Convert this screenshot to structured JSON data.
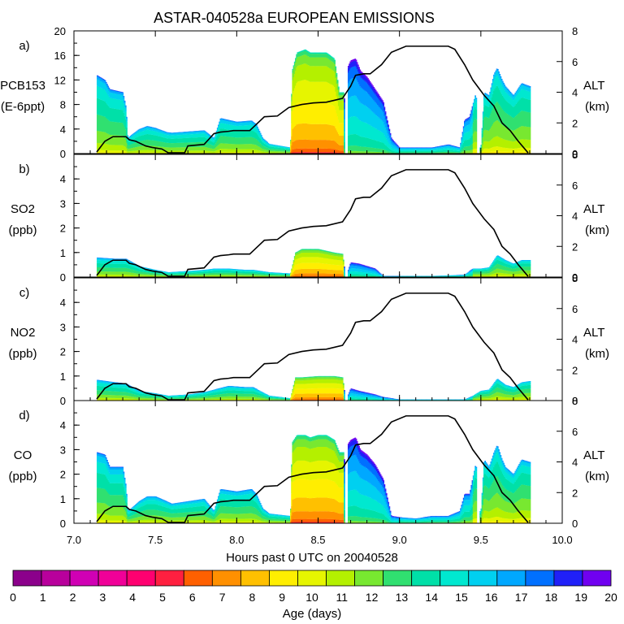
{
  "chart_data": {
    "type": "area",
    "title": "ASTAR-040528a EUROPEAN EMISSIONS",
    "xlabel": "Hours past 0 UTC on 20040528",
    "x_range": [
      7.0,
      10.0
    ],
    "x_ticks": [
      "7.0",
      "7.5",
      "8.0",
      "8.5",
      "9.0",
      "9.5",
      "10.0"
    ],
    "right_axis": {
      "label": "ALT",
      "units": "(km)",
      "range": [
        0,
        8
      ],
      "ticks": [
        "0",
        "2",
        "4",
        "6",
        "8"
      ]
    },
    "altitude_km": {
      "x": [
        7.14,
        7.19,
        7.24,
        7.32,
        7.34,
        7.38,
        7.44,
        7.48,
        7.54,
        7.58,
        7.68,
        7.7,
        7.8,
        7.86,
        7.9,
        7.95,
        7.98,
        8.08,
        8.1,
        8.17,
        8.25,
        8.32,
        8.4,
        8.47,
        8.55,
        8.65,
        8.7,
        8.73,
        8.78,
        8.82,
        8.89,
        8.95,
        9.04,
        9.1,
        9.2,
        9.3,
        9.34,
        9.4,
        9.45,
        9.52,
        9.58,
        9.63,
        9.68,
        9.73,
        9.79
      ],
      "y": [
        0.1,
        0.8,
        1.1,
        1.1,
        0.9,
        0.8,
        0.5,
        0.4,
        0.3,
        0.05,
        0.05,
        0.5,
        0.6,
        1.3,
        1.4,
        1.45,
        1.5,
        1.5,
        1.7,
        2.4,
        2.45,
        3.0,
        3.2,
        3.3,
        3.35,
        3.6,
        4.4,
        5.1,
        5.2,
        5.2,
        5.8,
        6.6,
        7.0,
        7.0,
        7.0,
        7.0,
        6.8,
        5.8,
        4.8,
        3.8,
        3.1,
        2.0,
        1.5,
        0.8,
        0.05
      ]
    },
    "panels": [
      {
        "letter": "a)",
        "label": "PCB153",
        "units": "(E-6ppt)",
        "ylim": [
          0,
          20
        ],
        "y_ticks": [
          "0",
          "4",
          "8",
          "12",
          "16",
          "20"
        ],
        "totals": {
          "x": [
            7.14,
            7.19,
            7.22,
            7.3,
            7.32,
            7.33,
            7.35,
            7.4,
            7.45,
            7.5,
            7.57,
            7.6,
            7.7,
            7.8,
            7.86,
            7.9,
            8.0,
            8.09,
            8.12,
            8.16,
            8.2,
            8.33,
            8.34,
            8.37,
            8.42,
            8.45,
            8.5,
            8.55,
            8.6,
            8.63,
            8.66,
            8.67,
            8.68,
            8.7,
            8.73,
            8.76,
            8.8,
            8.85,
            8.9,
            8.92,
            8.95,
            9.0,
            9.1,
            9.2,
            9.3,
            9.37,
            9.4,
            9.43,
            9.47,
            9.48,
            9.5,
            9.52,
            9.55,
            9.58,
            9.6,
            9.63,
            9.65,
            9.7,
            9.75,
            9.8
          ],
          "y": [
            12.8,
            12.0,
            10.5,
            10.0,
            7.5,
            2.5,
            3.0,
            4.0,
            4.5,
            4.2,
            3.5,
            3.4,
            3.6,
            3.8,
            2.5,
            5.8,
            5.2,
            5.4,
            4.8,
            2.5,
            1.6,
            1.0,
            13.5,
            16.5,
            17.0,
            16.5,
            16.5,
            16.5,
            15.5,
            10.0,
            10.0,
            0.0,
            14.0,
            15.2,
            15.5,
            13.5,
            12.5,
            10.5,
            8.5,
            6.0,
            2.5,
            1.0,
            1.0,
            1.0,
            1.5,
            1.0,
            5.5,
            6.0,
            10.0,
            1.0,
            1.0,
            10.0,
            9.5,
            13.0,
            14.0,
            12.0,
            11.0,
            9.5,
            11.5,
            11.0
          ],
          "gaps": [
            [
              8.665,
              8.68
            ],
            [
              9.475,
              9.495
            ]
          ]
        }
      },
      {
        "letter": "b)",
        "label": "SO2",
        "units": "(ppb)",
        "ylim": [
          0,
          5
        ],
        "y_ticks": [
          "0",
          "1",
          "2",
          "3",
          "4"
        ],
        "totals": {
          "x": [
            7.14,
            7.25,
            7.32,
            7.4,
            7.5,
            7.58,
            7.7,
            7.8,
            7.86,
            7.95,
            8.05,
            8.1,
            8.2,
            8.33,
            8.36,
            8.4,
            8.5,
            8.6,
            8.65,
            8.67,
            8.7,
            8.75,
            8.85,
            8.9,
            9.0,
            9.2,
            9.4,
            9.45,
            9.5,
            9.55,
            9.6,
            9.65,
            9.7,
            9.75,
            9.8
          ],
          "y": [
            0.8,
            0.75,
            0.75,
            0.45,
            0.3,
            0.2,
            0.25,
            0.3,
            0.35,
            0.35,
            0.3,
            0.3,
            0.2,
            0.15,
            1.0,
            1.15,
            1.15,
            1.0,
            0.95,
            0.0,
            0.6,
            0.55,
            0.35,
            0.05,
            0.05,
            0.05,
            0.1,
            0.35,
            0.35,
            0.4,
            0.9,
            0.7,
            0.55,
            0.7,
            0.7
          ],
          "gaps": [
            [
              8.665,
              8.68
            ]
          ]
        }
      },
      {
        "letter": "c)",
        "label": "NO2",
        "units": "(ppb)",
        "ylim": [
          0,
          5
        ],
        "y_ticks": [
          "0",
          "1",
          "2",
          "3",
          "4"
        ],
        "totals": {
          "x": [
            7.14,
            7.25,
            7.32,
            7.4,
            7.5,
            7.58,
            7.7,
            7.8,
            7.86,
            7.95,
            8.05,
            8.1,
            8.2,
            8.33,
            8.36,
            8.4,
            8.5,
            8.6,
            8.65,
            8.67,
            8.7,
            8.75,
            8.85,
            8.9,
            9.0,
            9.2,
            9.4,
            9.45,
            9.5,
            9.55,
            9.6,
            9.65,
            9.7,
            9.75,
            9.8
          ],
          "y": [
            0.85,
            0.75,
            0.7,
            0.4,
            0.3,
            0.2,
            0.25,
            0.35,
            0.45,
            0.6,
            0.55,
            0.55,
            0.2,
            0.1,
            0.95,
            0.95,
            1.0,
            1.0,
            0.95,
            0.0,
            0.5,
            0.4,
            0.25,
            0.15,
            0.05,
            0.05,
            0.05,
            0.2,
            0.4,
            0.45,
            0.9,
            0.65,
            0.55,
            0.75,
            0.8
          ],
          "gaps": [
            [
              8.665,
              8.68
            ]
          ]
        }
      },
      {
        "letter": "d)",
        "label": "CO",
        "units": "(ppb)",
        "ylim": [
          0,
          5
        ],
        "y_ticks": [
          "0",
          "1",
          "2",
          "3",
          "4"
        ],
        "totals": {
          "x": [
            7.14,
            7.19,
            7.22,
            7.3,
            7.32,
            7.33,
            7.35,
            7.4,
            7.45,
            7.5,
            7.57,
            7.6,
            7.7,
            7.8,
            7.86,
            7.9,
            8.0,
            8.09,
            8.12,
            8.16,
            8.2,
            8.33,
            8.34,
            8.37,
            8.42,
            8.45,
            8.5,
            8.55,
            8.6,
            8.63,
            8.66,
            8.67,
            8.68,
            8.7,
            8.73,
            8.76,
            8.8,
            8.85,
            8.9,
            8.92,
            8.95,
            9.0,
            9.1,
            9.2,
            9.3,
            9.37,
            9.4,
            9.43,
            9.47,
            9.48,
            9.5,
            9.52,
            9.55,
            9.58,
            9.6,
            9.63,
            9.65,
            9.7,
            9.75,
            9.8
          ],
          "y": [
            2.9,
            2.8,
            2.3,
            2.3,
            1.5,
            0.5,
            0.6,
            0.9,
            1.1,
            1.1,
            0.9,
            0.8,
            0.9,
            1.0,
            0.5,
            1.4,
            1.3,
            1.4,
            1.2,
            0.6,
            0.4,
            0.3,
            3.3,
            3.6,
            3.6,
            3.5,
            3.6,
            3.6,
            3.4,
            2.9,
            2.9,
            0.0,
            3.2,
            3.4,
            3.5,
            3.0,
            2.8,
            2.4,
            1.8,
            1.2,
            0.3,
            0.25,
            0.2,
            0.3,
            0.3,
            0.5,
            1.2,
            1.2,
            2.5,
            0.5,
            0.5,
            2.6,
            2.3,
            2.9,
            3.2,
            2.6,
            2.3,
            2.0,
            2.6,
            2.5
          ],
          "gaps": [
            [
              8.665,
              8.68
            ],
            [
              9.475,
              9.495
            ]
          ]
        }
      }
    ],
    "colorbar": {
      "label": "Age (days)",
      "ticks": [
        "0",
        "1",
        "2",
        "3",
        "4",
        "5",
        "6",
        "7",
        "8",
        "9",
        "10",
        "11",
        "12",
        "13",
        "14",
        "15",
        "16",
        "17",
        "18",
        "19",
        "20"
      ],
      "colors": [
        "#8b008b",
        "#b8009c",
        "#d000b4",
        "#f00098",
        "#ff0070",
        "#ff2040",
        "#ff6000",
        "#ff9000",
        "#ffc000",
        "#ffee00",
        "#e6f500",
        "#b4f000",
        "#78e830",
        "#30e070",
        "#00e0a8",
        "#00e8d0",
        "#00d0f0",
        "#00a8ff",
        "#0070ff",
        "#2020f8",
        "#7000f0"
      ]
    }
  }
}
